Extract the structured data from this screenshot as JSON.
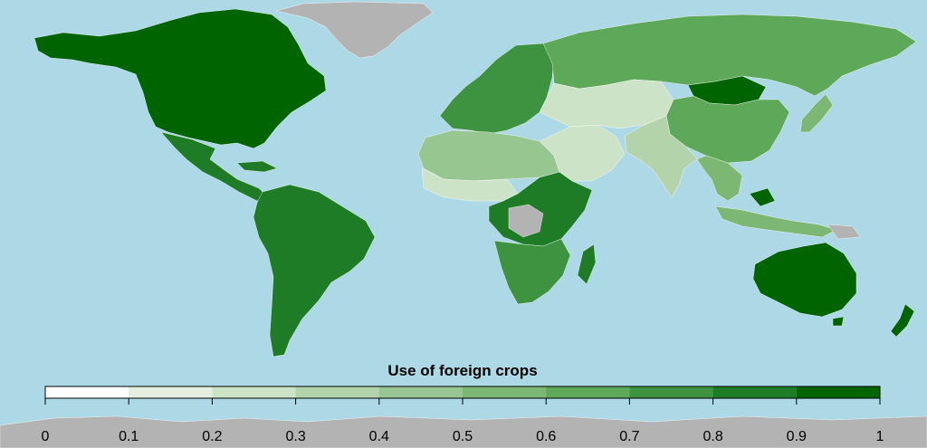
{
  "map": {
    "ocean_color": "#add8e6",
    "no_data_color": "#b3b3b3",
    "legend": {
      "title": "Use of foreign crops",
      "ticks": [
        "0",
        "0.1",
        "0.2",
        "0.3",
        "0.4",
        "0.5",
        "0.6",
        "0.7",
        "0.8",
        "0.9",
        "1"
      ],
      "bins": [
        {
          "from": 0.0,
          "to": 0.1,
          "color": "#ffffff"
        },
        {
          "from": 0.1,
          "to": 0.2,
          "color": "#e4efe0"
        },
        {
          "from": 0.2,
          "to": 0.3,
          "color": "#cde3c7"
        },
        {
          "from": 0.3,
          "to": 0.4,
          "color": "#b3d4ab"
        },
        {
          "from": 0.4,
          "to": 0.5,
          "color": "#98c690"
        },
        {
          "from": 0.5,
          "to": 0.6,
          "color": "#7cb874"
        },
        {
          "from": 0.6,
          "to": 0.7,
          "color": "#5ea85a"
        },
        {
          "from": 0.7,
          "to": 0.8,
          "color": "#3e9340"
        },
        {
          "from": 0.8,
          "to": 0.9,
          "color": "#1f7c26"
        },
        {
          "from": 0.9,
          "to": 1.0,
          "color": "#006400"
        }
      ]
    },
    "regions": [
      {
        "name": "north-america",
        "value": 0.95
      },
      {
        "name": "greenland",
        "value": null
      },
      {
        "name": "central-america",
        "value": 0.85
      },
      {
        "name": "south-america",
        "value": 0.9
      },
      {
        "name": "europe",
        "value": 0.75
      },
      {
        "name": "russia",
        "value": 0.65
      },
      {
        "name": "north-africa",
        "value": 0.45
      },
      {
        "name": "sahel",
        "value": 0.25
      },
      {
        "name": "central-africa",
        "value": 0.85
      },
      {
        "name": "southern-africa",
        "value": 0.8
      },
      {
        "name": "middle-east",
        "value": 0.25
      },
      {
        "name": "central-asia",
        "value": 0.3
      },
      {
        "name": "china",
        "value": 0.7
      },
      {
        "name": "mongolia",
        "value": 0.95
      },
      {
        "name": "india",
        "value": 0.35
      },
      {
        "name": "southeast-asia",
        "value": 0.6
      },
      {
        "name": "australia",
        "value": 1.0
      },
      {
        "name": "new-zealand",
        "value": 1.0
      },
      {
        "name": "madagascar",
        "value": 0.9
      },
      {
        "name": "japan",
        "value": 0.6
      },
      {
        "name": "antarctica",
        "value": null
      }
    ]
  }
}
